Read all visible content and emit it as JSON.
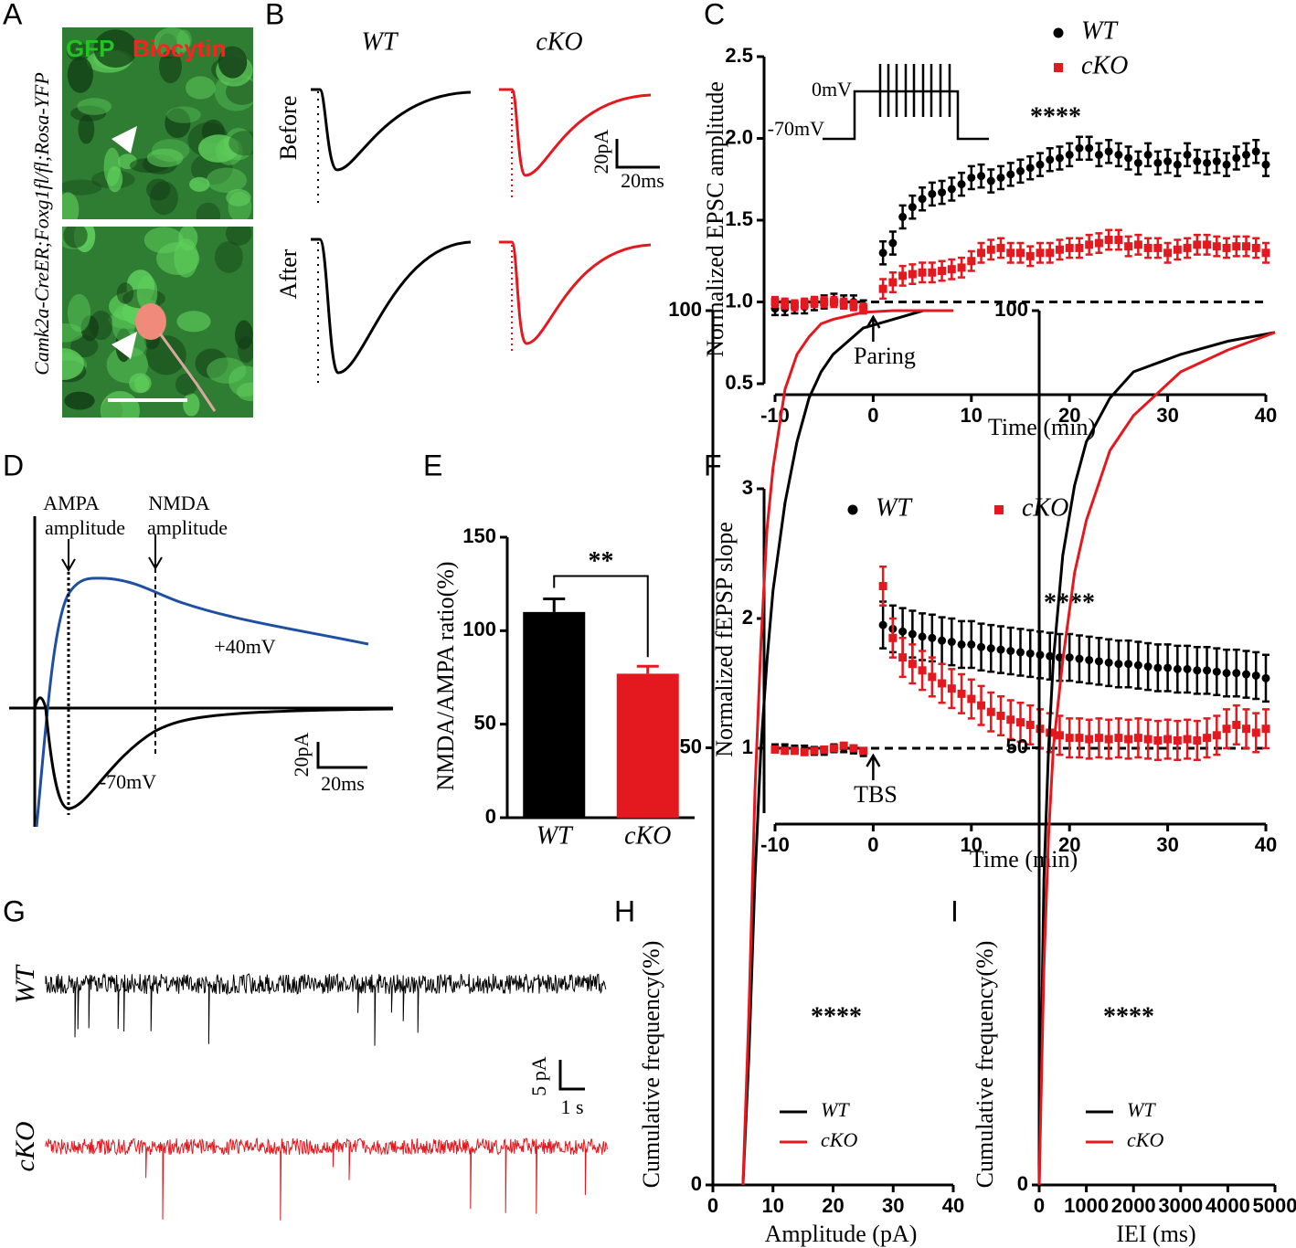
{
  "chart_data": [
    {
      "type": "scatter",
      "panel_label": "C",
      "xlabel": "Time (min)",
      "ylabel": "Normalized EPSC amplitude",
      "x": [
        -10,
        -9,
        -8,
        -7,
        -6,
        -5,
        -4,
        -3,
        -2,
        -1,
        1,
        2,
        3,
        4,
        5,
        6,
        7,
        8,
        9,
        10,
        11,
        12,
        13,
        14,
        15,
        16,
        17,
        18,
        19,
        20,
        21,
        22,
        23,
        24,
        25,
        26,
        27,
        28,
        29,
        30,
        31,
        32,
        33,
        34,
        35,
        36,
        37,
        38,
        39,
        40
      ],
      "series": [
        {
          "name": "WT",
          "color": "#000000",
          "marker": "circle",
          "values": [
            0.96,
            0.96,
            0.97,
            0.97,
            0.99,
            1.0,
            1.01,
            1.0,
            1.0,
            0.97,
            1.3,
            1.36,
            1.52,
            1.58,
            1.63,
            1.66,
            1.67,
            1.69,
            1.72,
            1.76,
            1.77,
            1.74,
            1.76,
            1.78,
            1.8,
            1.82,
            1.84,
            1.87,
            1.88,
            1.9,
            1.94,
            1.94,
            1.9,
            1.92,
            1.9,
            1.88,
            1.85,
            1.9,
            1.85,
            1.86,
            1.84,
            1.9,
            1.86,
            1.85,
            1.86,
            1.84,
            1.88,
            1.9,
            1.92,
            1.84
          ],
          "errors": [
            0.04,
            0.04,
            0.04,
            0.04,
            0.04,
            0.04,
            0.04,
            0.04,
            0.04,
            0.04,
            0.07,
            0.07,
            0.07,
            0.07,
            0.07,
            0.07,
            0.07,
            0.07,
            0.07,
            0.07,
            0.07,
            0.07,
            0.07,
            0.07,
            0.07,
            0.07,
            0.07,
            0.07,
            0.07,
            0.07,
            0.07,
            0.07,
            0.07,
            0.07,
            0.07,
            0.07,
            0.07,
            0.07,
            0.07,
            0.07,
            0.07,
            0.07,
            0.07,
            0.07,
            0.07,
            0.07,
            0.07,
            0.07,
            0.07,
            0.07
          ]
        },
        {
          "name": "cKO",
          "color": "#e3191f",
          "marker": "square",
          "values": [
            1.0,
            0.99,
            0.98,
            0.99,
            1.0,
            1.0,
            1.0,
            0.99,
            0.98,
            0.96,
            1.08,
            1.12,
            1.16,
            1.17,
            1.18,
            1.18,
            1.19,
            1.2,
            1.21,
            1.25,
            1.3,
            1.32,
            1.33,
            1.3,
            1.3,
            1.28,
            1.3,
            1.3,
            1.32,
            1.33,
            1.33,
            1.35,
            1.36,
            1.38,
            1.38,
            1.34,
            1.35,
            1.33,
            1.33,
            1.3,
            1.32,
            1.33,
            1.35,
            1.35,
            1.34,
            1.33,
            1.34,
            1.34,
            1.33,
            1.3
          ],
          "errors": [
            0.03,
            0.03,
            0.03,
            0.03,
            0.03,
            0.03,
            0.03,
            0.03,
            0.03,
            0.03,
            0.06,
            0.06,
            0.06,
            0.06,
            0.06,
            0.06,
            0.06,
            0.06,
            0.06,
            0.06,
            0.06,
            0.06,
            0.06,
            0.06,
            0.06,
            0.06,
            0.06,
            0.06,
            0.06,
            0.06,
            0.06,
            0.06,
            0.06,
            0.06,
            0.06,
            0.06,
            0.06,
            0.06,
            0.06,
            0.06,
            0.06,
            0.06,
            0.06,
            0.06,
            0.06,
            0.06,
            0.06,
            0.06,
            0.06,
            0.06
          ]
        }
      ],
      "xlim": [
        -10,
        40
      ],
      "ylim": [
        0.5,
        2.5
      ],
      "xticks": [
        -10,
        0,
        10,
        20,
        30,
        40
      ],
      "yticks": [
        0.5,
        {
          "value": 1,
          "label": "1.0"
        },
        1.5,
        {
          "value": 2,
          "label": "2.0"
        },
        2.5
      ],
      "reference_line": 1,
      "annotations": [
        {
          "text": "Paring",
          "x": 0
        },
        {
          "text": "****"
        }
      ],
      "inset_labels": [
        "0mV",
        "-70mV"
      ]
    },
    {
      "type": "bar",
      "panel_label": "E",
      "ylabel": "NMDA/AMPA ratio(%)",
      "categories": [
        "WT",
        "cKO"
      ],
      "values": [
        110,
        77
      ],
      "errors": [
        7,
        4
      ],
      "colors": [
        "#000000",
        "#e3191f"
      ],
      "ylim": [
        0,
        150
      ],
      "yticks": [
        0,
        50,
        100,
        150
      ],
      "annotations": [
        {
          "text": "**"
        }
      ]
    },
    {
      "type": "scatter",
      "panel_label": "F",
      "xlabel": "Time (min)",
      "ylabel": "Normalized fEPSP slope",
      "x": [
        -10,
        -9,
        -8,
        -7,
        -6,
        -5,
        -4,
        -3,
        -2,
        -1,
        1,
        2,
        3,
        4,
        5,
        6,
        7,
        8,
        9,
        10,
        11,
        12,
        13,
        14,
        15,
        16,
        17,
        18,
        19,
        20,
        21,
        22,
        23,
        24,
        25,
        26,
        27,
        28,
        29,
        30,
        31,
        32,
        33,
        34,
        35,
        36,
        37,
        38,
        39,
        40
      ],
      "series": [
        {
          "name": "WT",
          "color": "#000000",
          "marker": "circle",
          "values": [
            1.0,
            1.0,
            0.99,
            0.99,
            0.98,
            0.98,
            1.0,
            1.0,
            0.99,
            0.97,
            1.95,
            1.92,
            1.9,
            1.88,
            1.86,
            1.85,
            1.83,
            1.82,
            1.8,
            1.8,
            1.78,
            1.77,
            1.76,
            1.75,
            1.74,
            1.73,
            1.72,
            1.71,
            1.7,
            1.7,
            1.69,
            1.68,
            1.67,
            1.66,
            1.65,
            1.65,
            1.64,
            1.63,
            1.62,
            1.62,
            1.61,
            1.61,
            1.6,
            1.6,
            1.59,
            1.58,
            1.58,
            1.57,
            1.56,
            1.54
          ],
          "errors": [
            0.03,
            0.03,
            0.03,
            0.03,
            0.03,
            0.03,
            0.03,
            0.03,
            0.03,
            0.03,
            0.18,
            0.18,
            0.18,
            0.18,
            0.18,
            0.18,
            0.18,
            0.18,
            0.18,
            0.18,
            0.18,
            0.18,
            0.18,
            0.18,
            0.18,
            0.18,
            0.18,
            0.18,
            0.18,
            0.18,
            0.18,
            0.18,
            0.18,
            0.18,
            0.18,
            0.18,
            0.18,
            0.18,
            0.18,
            0.18,
            0.18,
            0.18,
            0.18,
            0.18,
            0.18,
            0.18,
            0.18,
            0.18,
            0.18,
            0.18
          ]
        },
        {
          "name": "cKO",
          "color": "#e3191f",
          "marker": "square",
          "values": [
            0.99,
            0.98,
            0.98,
            0.97,
            0.98,
            0.99,
            1.0,
            1.02,
            1.0,
            0.98,
            2.25,
            1.85,
            1.7,
            1.65,
            1.6,
            1.55,
            1.5,
            1.46,
            1.42,
            1.38,
            1.33,
            1.28,
            1.25,
            1.22,
            1.2,
            1.18,
            1.15,
            1.12,
            1.1,
            1.08,
            1.08,
            1.07,
            1.08,
            1.07,
            1.08,
            1.07,
            1.08,
            1.07,
            1.06,
            1.07,
            1.06,
            1.07,
            1.06,
            1.08,
            1.1,
            1.15,
            1.18,
            1.15,
            1.12,
            1.15
          ],
          "errors": [
            0.02,
            0.02,
            0.02,
            0.02,
            0.02,
            0.02,
            0.02,
            0.02,
            0.02,
            0.02,
            0.15,
            0.15,
            0.15,
            0.15,
            0.15,
            0.15,
            0.15,
            0.15,
            0.15,
            0.15,
            0.15,
            0.15,
            0.15,
            0.15,
            0.15,
            0.15,
            0.15,
            0.15,
            0.15,
            0.15,
            0.15,
            0.15,
            0.15,
            0.15,
            0.15,
            0.15,
            0.15,
            0.15,
            0.15,
            0.15,
            0.15,
            0.15,
            0.15,
            0.15,
            0.15,
            0.15,
            0.15,
            0.15,
            0.15,
            0.15
          ]
        }
      ],
      "xlim": [
        -10,
        40
      ],
      "ylim": [
        0.5,
        3
      ],
      "xticks": [
        -10,
        0,
        10,
        20,
        30,
        40
      ],
      "yticks": [
        1,
        2,
        3
      ],
      "reference_line": 1,
      "annotations": [
        {
          "text": "TBS",
          "x": 0
        },
        {
          "text": "****"
        }
      ]
    },
    {
      "type": "line",
      "panel_label": "H",
      "xlabel": "Amplitude (pA)",
      "ylabel": "Cumulative frequency(%)",
      "x": [
        5,
        6,
        7,
        8,
        9,
        10,
        12,
        14,
        16,
        18,
        20,
        25,
        30,
        35,
        40
      ],
      "series": [
        {
          "name": "WT",
          "color": "#000000",
          "values": [
            0,
            15,
            35,
            50,
            60,
            68,
            78,
            85,
            90,
            93,
            95,
            98,
            99,
            100,
            100
          ]
        },
        {
          "name": "cKO",
          "color": "#e3191f",
          "values": [
            0,
            20,
            45,
            62,
            75,
            82,
            91,
            95,
            97,
            98.5,
            99,
            99.8,
            100,
            100,
            100
          ]
        }
      ],
      "xlim": [
        0,
        40
      ],
      "ylim": [
        0,
        100
      ],
      "xticks": [
        0,
        10,
        20,
        30,
        40
      ],
      "yticks": [
        0,
        50,
        100
      ],
      "annotations": [
        {
          "text": "****"
        }
      ]
    },
    {
      "type": "line",
      "panel_label": "I",
      "xlabel": "IEI (ms)",
      "ylabel": "Cumulative frequency(%)",
      "x": [
        0,
        100,
        200,
        300,
        500,
        750,
        1000,
        1500,
        2000,
        3000,
        4000,
        5000
      ],
      "series": [
        {
          "name": "WT",
          "color": "#000000",
          "values": [
            0,
            35,
            50,
            60,
            72,
            80,
            85,
            90,
            93,
            95,
            96.5,
            97.5
          ]
        },
        {
          "name": "cKO",
          "color": "#e3191f",
          "values": [
            0,
            25,
            40,
            50,
            60,
            70,
            76,
            84,
            88,
            93,
            95.5,
            97.5
          ]
        }
      ],
      "xlim": [
        0,
        5000
      ],
      "ylim": [
        0,
        100
      ],
      "xticks": [
        0,
        1000,
        2000,
        3000,
        4000,
        5000
      ],
      "yticks": [
        0,
        50,
        100
      ],
      "annotations": [
        {
          "text": "****"
        }
      ]
    }
  ],
  "panels": {
    "A": {
      "label": "A",
      "stains": [
        "GFP",
        "Biocytin"
      ],
      "genotype": "Camk2a-CreER;Foxg1fl/fl;Rosa-YFP"
    },
    "B": {
      "label": "B",
      "columns": [
        "WT",
        "cKO"
      ],
      "rows": [
        "Before",
        "After"
      ],
      "scale_y": "20pA",
      "scale_x": "20ms"
    },
    "D": {
      "label": "D",
      "markers": [
        [
          "AMPA",
          "amplitude"
        ],
        [
          "NMDA",
          "amplitude"
        ]
      ],
      "traces": [
        "+40mV",
        "-70mV"
      ],
      "scale_y": "20pA",
      "scale_x": "20ms"
    },
    "G": {
      "label": "G",
      "rows": [
        "WT",
        "cKO"
      ],
      "scale_y": "5 pA",
      "scale_x": "1 s"
    }
  }
}
